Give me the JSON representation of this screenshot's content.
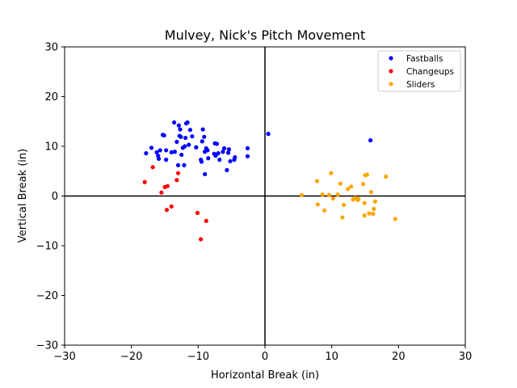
{
  "chart_data": {
    "type": "scatter",
    "title": "Mulvey, Nick's Pitch Movement",
    "xlabel": "Horizontal Break (in)",
    "ylabel": "Vertical Break (in)",
    "xlim": [
      -30,
      30
    ],
    "ylim": [
      -30,
      30
    ],
    "xticks": [
      -30,
      -20,
      -10,
      0,
      10,
      20,
      30
    ],
    "yticks": [
      -30,
      -20,
      -10,
      0,
      10,
      20,
      30
    ],
    "grid": false,
    "reference_lines": {
      "x": 0,
      "y": 0
    },
    "legend_position": "top-right",
    "series": [
      {
        "name": "Fastballs",
        "color": "#0000ff",
        "points": [
          [
            -17.8,
            8.6
          ],
          [
            -17.0,
            9.7
          ],
          [
            -16.2,
            8.8
          ],
          [
            -16.0,
            8.1
          ],
          [
            -15.9,
            7.5
          ],
          [
            -15.7,
            9.2
          ],
          [
            -15.3,
            12.3
          ],
          [
            -15.1,
            12.2
          ],
          [
            -14.8,
            9.2
          ],
          [
            -14.8,
            7.3
          ],
          [
            -14.0,
            8.8
          ],
          [
            -13.6,
            14.8
          ],
          [
            -13.5,
            8.9
          ],
          [
            -13.2,
            10.9
          ],
          [
            -13.0,
            6.2
          ],
          [
            -12.9,
            14.2
          ],
          [
            -12.8,
            12.1
          ],
          [
            -12.7,
            13.4
          ],
          [
            -12.6,
            11.9
          ],
          [
            -12.5,
            8.3
          ],
          [
            -12.3,
            9.7
          ],
          [
            -12.1,
            6.2
          ],
          [
            -12.0,
            10.0
          ],
          [
            -11.9,
            11.7
          ],
          [
            -11.8,
            14.6
          ],
          [
            -11.6,
            14.8
          ],
          [
            -11.4,
            10.3
          ],
          [
            -11.2,
            13.3
          ],
          [
            -10.9,
            12.0
          ],
          [
            -10.3,
            9.8
          ],
          [
            -9.6,
            7.3
          ],
          [
            -9.5,
            6.9
          ],
          [
            -9.4,
            11.0
          ],
          [
            -9.3,
            13.4
          ],
          [
            -9.1,
            11.9
          ],
          [
            -9.0,
            8.9
          ],
          [
            -9.0,
            4.4
          ],
          [
            -8.8,
            9.6
          ],
          [
            -8.6,
            9.2
          ],
          [
            -8.5,
            7.6
          ],
          [
            -7.6,
            8.5
          ],
          [
            -7.5,
            10.6
          ],
          [
            -7.4,
            8.1
          ],
          [
            -7.2,
            10.5
          ],
          [
            -7.0,
            8.6
          ],
          [
            -6.8,
            7.3
          ],
          [
            -6.3,
            8.9
          ],
          [
            -6.1,
            9.6
          ],
          [
            -5.7,
            5.2
          ],
          [
            -5.5,
            8.7
          ],
          [
            -5.4,
            9.4
          ],
          [
            -5.2,
            7.0
          ],
          [
            -4.6,
            7.3
          ],
          [
            -4.5,
            7.8
          ],
          [
            -2.6,
            9.6
          ],
          [
            -2.6,
            8.0
          ],
          [
            0.5,
            12.5
          ],
          [
            15.8,
            11.2
          ]
        ]
      },
      {
        "name": "Changeups",
        "color": "#ff0000",
        "points": [
          [
            -18.0,
            2.8
          ],
          [
            -16.8,
            5.8
          ],
          [
            -15.5,
            0.7
          ],
          [
            -15.0,
            1.8
          ],
          [
            -14.6,
            2.0
          ],
          [
            -14.7,
            -2.8
          ],
          [
            -14.0,
            -2.1
          ],
          [
            -13.2,
            3.2
          ],
          [
            -13.0,
            4.6
          ],
          [
            -10.1,
            -3.4
          ],
          [
            -9.6,
            -8.7
          ],
          [
            -8.8,
            -5.0
          ]
        ]
      },
      {
        "name": "Sliders",
        "color": "#ffa500",
        "points": [
          [
            5.5,
            0.2
          ],
          [
            7.8,
            3.0
          ],
          [
            7.9,
            -1.7
          ],
          [
            8.6,
            0.3
          ],
          [
            8.9,
            -2.9
          ],
          [
            9.6,
            0.2
          ],
          [
            9.9,
            4.6
          ],
          [
            10.2,
            -0.5
          ],
          [
            10.9,
            0.3
          ],
          [
            11.3,
            2.5
          ],
          [
            11.6,
            -4.3
          ],
          [
            11.8,
            -1.8
          ],
          [
            12.4,
            1.4
          ],
          [
            12.9,
            1.9
          ],
          [
            13.2,
            -0.7
          ],
          [
            13.5,
            -0.4
          ],
          [
            13.9,
            -0.8
          ],
          [
            14.0,
            -0.6
          ],
          [
            14.7,
            2.4
          ],
          [
            14.9,
            -1.4
          ],
          [
            14.9,
            -3.9
          ],
          [
            15.0,
            4.2
          ],
          [
            15.3,
            4.3
          ],
          [
            15.6,
            -3.5
          ],
          [
            15.9,
            0.8
          ],
          [
            16.2,
            -3.6
          ],
          [
            16.3,
            -2.6
          ],
          [
            16.5,
            -1.1
          ],
          [
            18.1,
            3.9
          ],
          [
            19.5,
            -4.6
          ]
        ]
      }
    ]
  }
}
